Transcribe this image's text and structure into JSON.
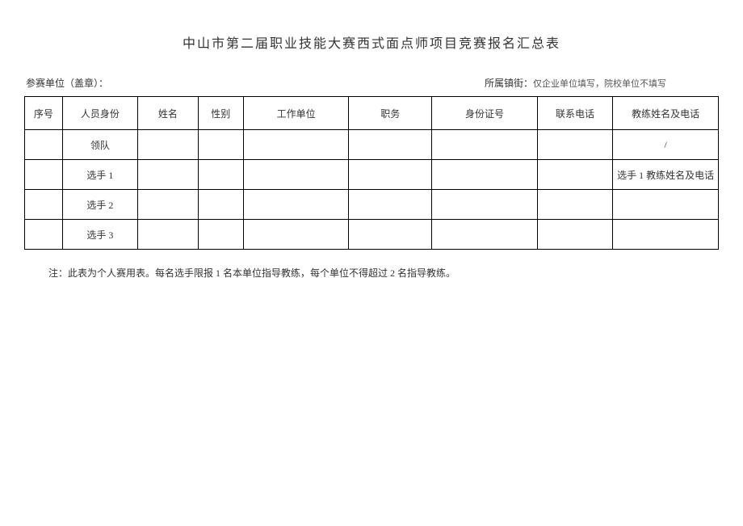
{
  "title": "中山市第二届职业技能大赛西式面点师项目竞赛报名汇总表",
  "meta": {
    "unit_label": "参赛单位（盖章）：",
    "town_label": "所属镇街：",
    "town_note": "仅企业单位填写，院校单位不填写"
  },
  "table": {
    "headers": {
      "seq": "序号",
      "identity": "人员身份",
      "name": "姓名",
      "gender": "性别",
      "unit": "工作单位",
      "position": "职务",
      "idcard": "身份证号",
      "phone": "联系电话",
      "coach": "教练姓名及电话"
    },
    "rows": [
      {
        "seq": "",
        "identity": "领队",
        "name": "",
        "gender": "",
        "unit": "",
        "position": "",
        "idcard": "",
        "phone": "",
        "coach": "/"
      },
      {
        "seq": "",
        "identity": "选手 1",
        "name": "",
        "gender": "",
        "unit": "",
        "position": "",
        "idcard": "",
        "phone": "",
        "coach": "选手 1 教练姓名及电话"
      },
      {
        "seq": "",
        "identity": "选手 2",
        "name": "",
        "gender": "",
        "unit": "",
        "position": "",
        "idcard": "",
        "phone": "",
        "coach": ""
      },
      {
        "seq": "",
        "identity": "选手 3",
        "name": "",
        "gender": "",
        "unit": "",
        "position": "",
        "idcard": "",
        "phone": "",
        "coach": ""
      }
    ]
  },
  "note": "注：此表为个人赛用表。每名选手限报 1 名本单位指导教练，每个单位不得超过 2 名指导教练。"
}
